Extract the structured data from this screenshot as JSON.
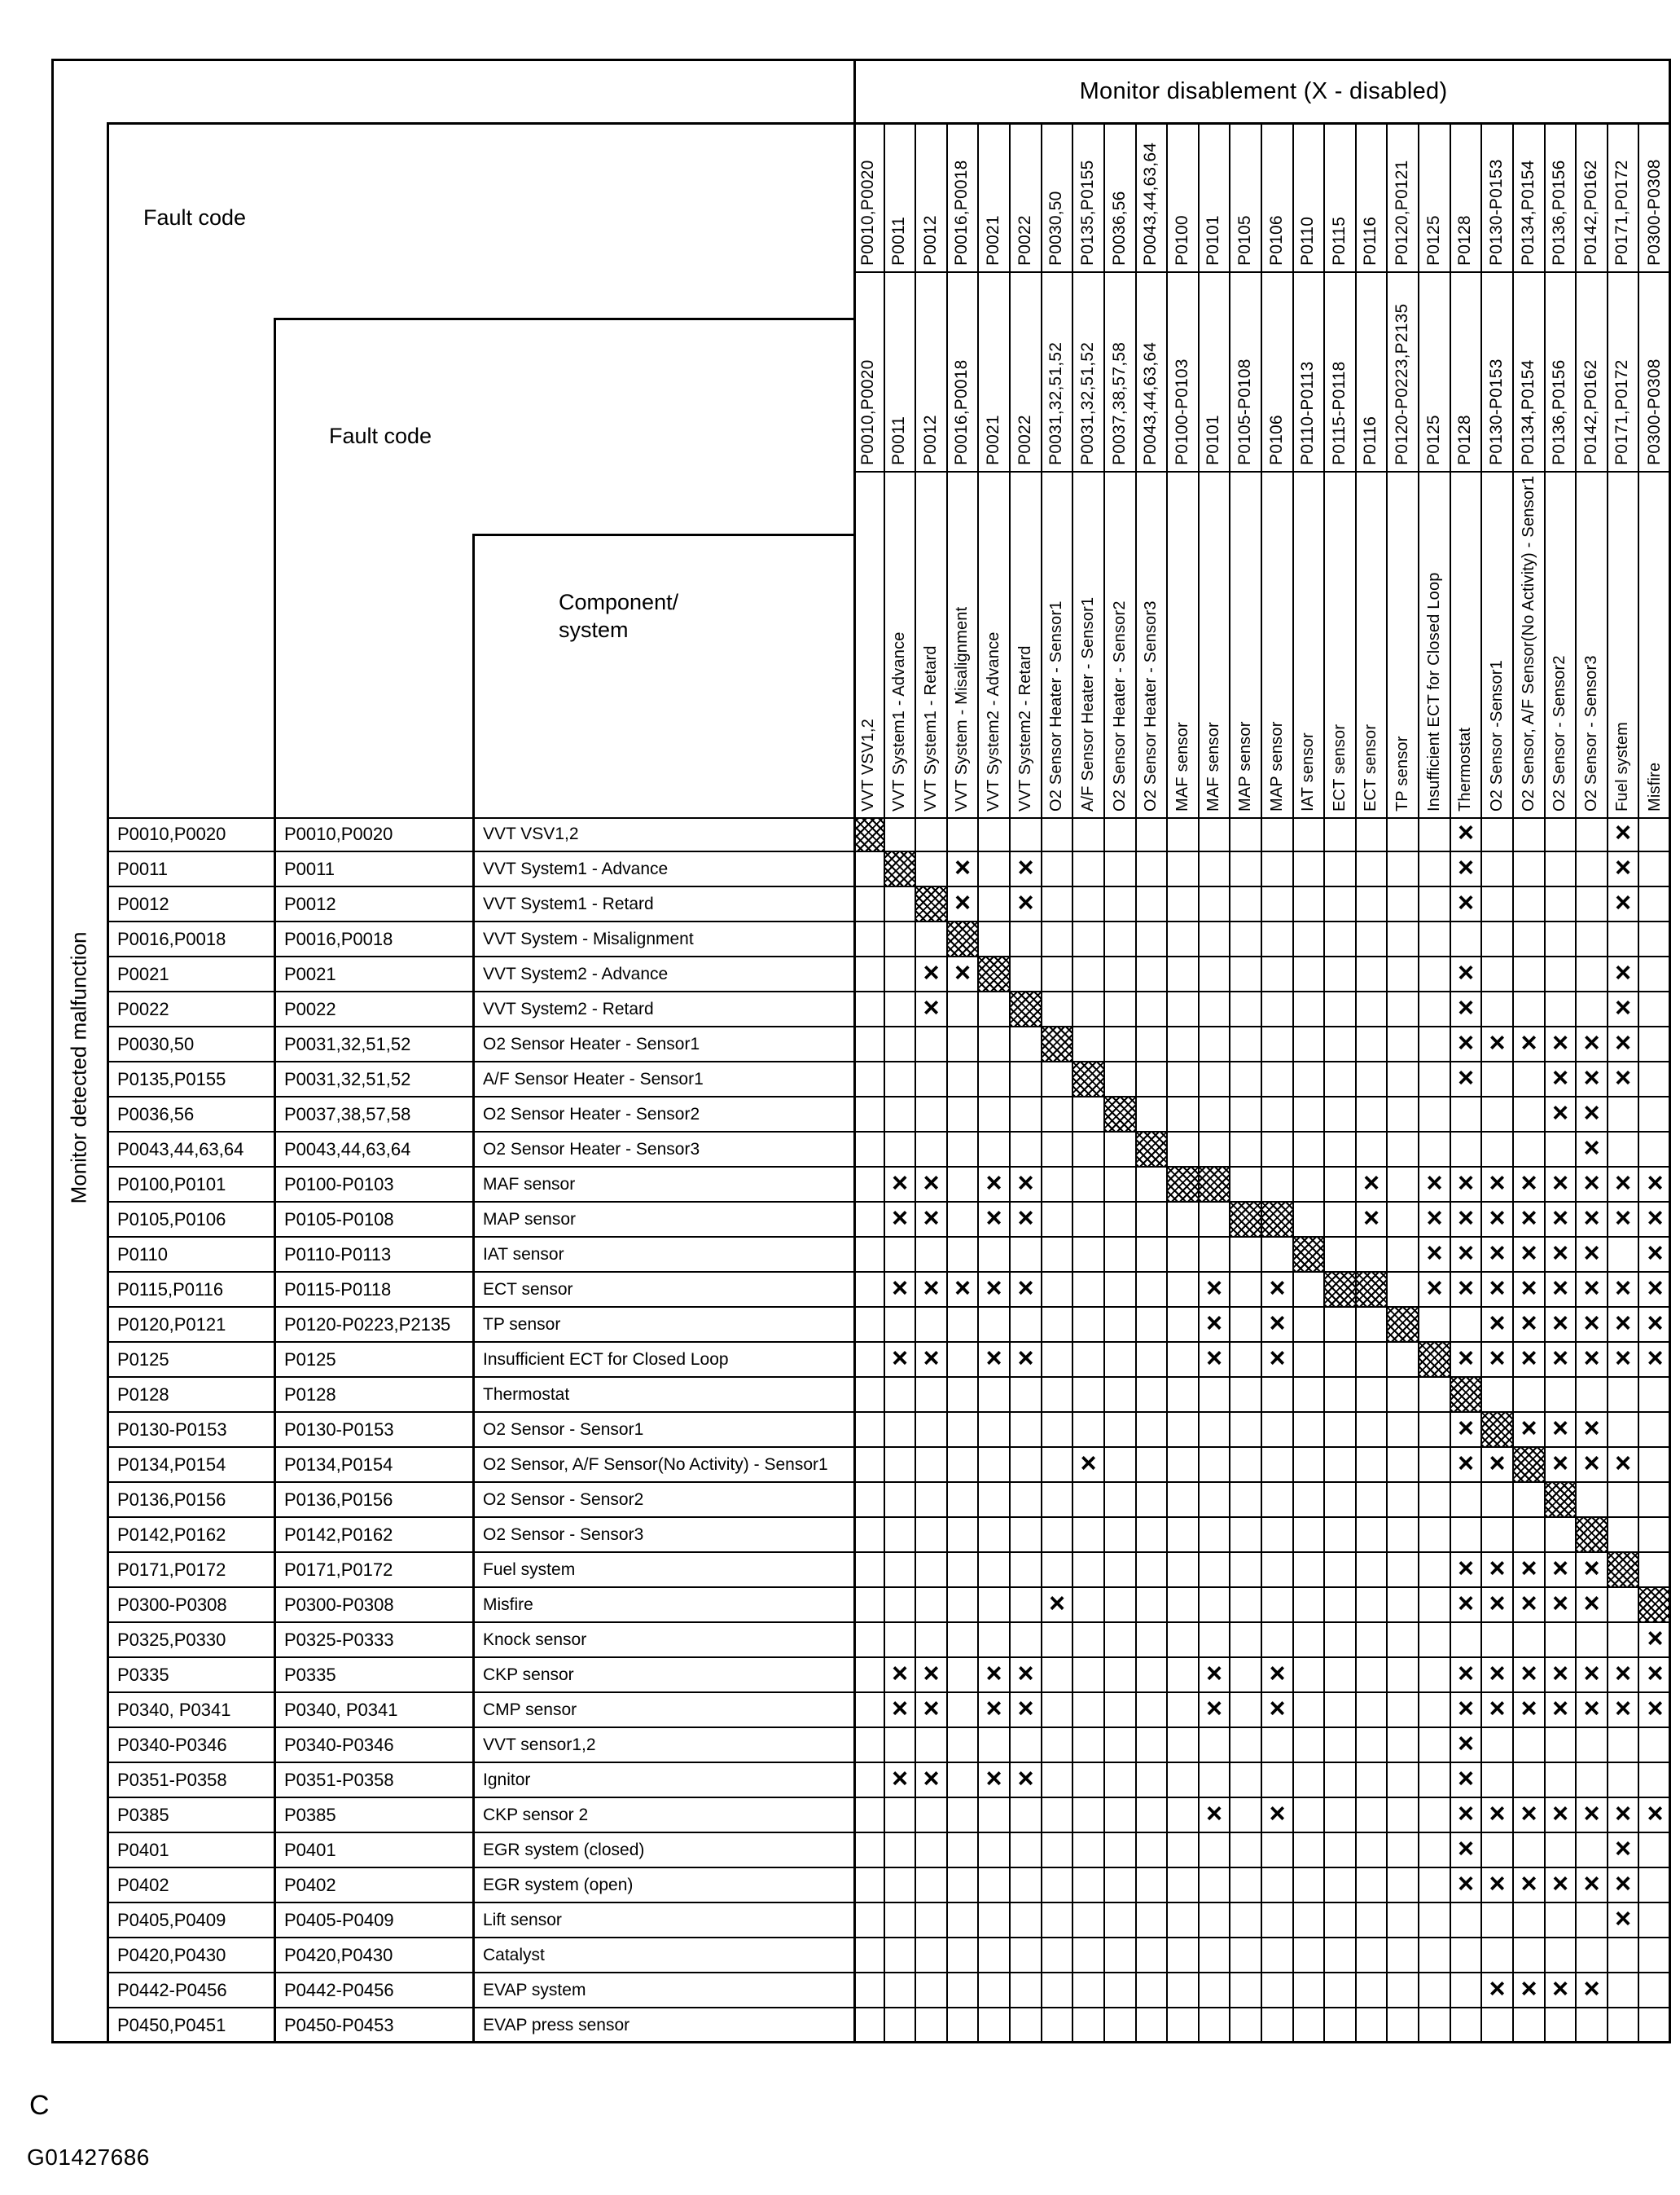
{
  "page": {
    "figure_label": "C",
    "figure_id": "G01427686"
  },
  "table": {
    "title": "Monitor disablement (X - disabled)",
    "row_axis_label": "Monitor detected malfunction",
    "fault_code_label_outer": "Fault code",
    "fault_code_label_inner": "Fault code",
    "component_label_line1": "Component/",
    "component_label_line2": "system",
    "x_glyph": "×",
    "columns": [
      {
        "code": "P0010,P0020",
        "code_range": "P0010,P0020",
        "component": "VVT VSV1,2"
      },
      {
        "code": "P0011",
        "code_range": "P0011",
        "component": "VVT System1 - Advance"
      },
      {
        "code": "P0012",
        "code_range": "P0012",
        "component": "VVT System1 - Retard"
      },
      {
        "code": "P0016,P0018",
        "code_range": "P0016,P0018",
        "component": "VVT System - Misalignment"
      },
      {
        "code": "P0021",
        "code_range": "P0021",
        "component": "VVT System2 - Advance"
      },
      {
        "code": "P0022",
        "code_range": "P0022",
        "component": "VVT System2 - Retard"
      },
      {
        "code": "P0030,50",
        "code_range": "P0031,32,51,52",
        "component": "O2 Sensor Heater - Sensor1"
      },
      {
        "code": "P0135,P0155",
        "code_range": "P0031,32,51,52",
        "component": "A/F Sensor Heater - Sensor1"
      },
      {
        "code": "P0036,56",
        "code_range": "P0037,38,57,58",
        "component": "O2 Sensor Heater - Sensor2"
      },
      {
        "code": "P0043,44,63,64",
        "code_range": "P0043,44,63,64",
        "component": "O2 Sensor Heater - Sensor3"
      },
      {
        "code": "P0100",
        "code_range": "P0100-P0103",
        "component": "MAF sensor"
      },
      {
        "code": "P0101",
        "code_range": "P0101",
        "component": "MAF sensor"
      },
      {
        "code": "P0105",
        "code_range": "P0105-P0108",
        "component": "MAP sensor"
      },
      {
        "code": "P0106",
        "code_range": "P0106",
        "component": "MAP sensor"
      },
      {
        "code": "P0110",
        "code_range": "P0110-P0113",
        "component": "IAT sensor"
      },
      {
        "code": "P0115",
        "code_range": "P0115-P0118",
        "component": "ECT sensor"
      },
      {
        "code": "P0116",
        "code_range": "P0116",
        "component": "ECT sensor"
      },
      {
        "code": "P0120,P0121",
        "code_range": "P0120-P0223,P2135",
        "component": "TP sensor"
      },
      {
        "code": "P0125",
        "code_range": "P0125",
        "component": "Insufficient ECT for Closed Loop"
      },
      {
        "code": "P0128",
        "code_range": "P0128",
        "component": "Thermostat"
      },
      {
        "code": "P0130-P0153",
        "code_range": "P0130-P0153",
        "component": "O2 Sensor -Sensor1"
      },
      {
        "code": "P0134,P0154",
        "code_range": "P0134,P0154",
        "component": "O2 Sensor, A/F Sensor(No Activity) - Sensor1"
      },
      {
        "code": "P0136,P0156",
        "code_range": "P0136,P0156",
        "component": "O2 Sensor - Sensor2"
      },
      {
        "code": "P0142,P0162",
        "code_range": "P0142,P0162",
        "component": "O2 Sensor - Sensor3"
      },
      {
        "code": "P0171,P0172",
        "code_range": "P0171,P0172",
        "component": "Fuel system"
      },
      {
        "code": "P0300-P0308",
        "code_range": "P0300-P0308",
        "component": "Misfire"
      }
    ],
    "rows": [
      {
        "fault_code": "P0010,P0020",
        "fault_code_range": "P0010,P0020",
        "component": "VVT VSV1,2",
        "x_cols": [
          20,
          25
        ],
        "diag_cols": [
          1
        ]
      },
      {
        "fault_code": "P0011",
        "fault_code_range": "P0011",
        "component": "VVT System1 - Advance",
        "x_cols": [
          4,
          6,
          20,
          25
        ],
        "diag_cols": [
          2
        ]
      },
      {
        "fault_code": "P0012",
        "fault_code_range": "P0012",
        "component": "VVT System1 - Retard",
        "x_cols": [
          4,
          6,
          20,
          25
        ],
        "diag_cols": [
          3
        ]
      },
      {
        "fault_code": "P0016,P0018",
        "fault_code_range": "P0016,P0018",
        "component": "VVT System - Misalignment",
        "x_cols": [],
        "diag_cols": [
          4
        ]
      },
      {
        "fault_code": "P0021",
        "fault_code_range": "P0021",
        "component": "VVT System2 - Advance",
        "x_cols": [
          3,
          4,
          20,
          25
        ],
        "diag_cols": [
          5
        ]
      },
      {
        "fault_code": "P0022",
        "fault_code_range": "P0022",
        "component": "VVT System2 - Retard",
        "x_cols": [
          3,
          20,
          25
        ],
        "diag_cols": [
          6
        ]
      },
      {
        "fault_code": "P0030,50",
        "fault_code_range": "P0031,32,51,52",
        "component": "O2 Sensor Heater - Sensor1",
        "x_cols": [
          20,
          21,
          22,
          23,
          24,
          25
        ],
        "diag_cols": [
          7
        ]
      },
      {
        "fault_code": "P0135,P0155",
        "fault_code_range": "P0031,32,51,52",
        "component": "A/F Sensor Heater  - Sensor1",
        "x_cols": [
          20,
          23,
          24,
          25
        ],
        "diag_cols": [
          8
        ]
      },
      {
        "fault_code": "P0036,56",
        "fault_code_range": "P0037,38,57,58",
        "component": "O2 Sensor Heater - Sensor2",
        "x_cols": [
          23,
          24
        ],
        "diag_cols": [
          9
        ]
      },
      {
        "fault_code": "P0043,44,63,64",
        "fault_code_range": "P0043,44,63,64",
        "component": "O2 Sensor Heater - Sensor3",
        "x_cols": [
          24
        ],
        "diag_cols": [
          10
        ]
      },
      {
        "fault_code": "P0100,P0101",
        "fault_code_range": "P0100-P0103",
        "component": "MAF sensor",
        "x_cols": [
          2,
          3,
          5,
          6,
          17,
          19,
          20,
          21,
          22,
          23,
          24,
          25,
          26
        ],
        "diag_cols": [
          11,
          12
        ]
      },
      {
        "fault_code": "P0105,P0106",
        "fault_code_range": "P0105-P0108",
        "component": "MAP sensor",
        "x_cols": [
          2,
          3,
          5,
          6,
          17,
          19,
          20,
          21,
          22,
          23,
          24,
          25,
          26
        ],
        "diag_cols": [
          13,
          14
        ]
      },
      {
        "fault_code": "P0110",
        "fault_code_range": "P0110-P0113",
        "component": "IAT sensor",
        "x_cols": [
          19,
          20,
          21,
          22,
          23,
          24,
          26
        ],
        "diag_cols": [
          15
        ]
      },
      {
        "fault_code": "P0115,P0116",
        "fault_code_range": "P0115-P0118",
        "component": "ECT sensor",
        "x_cols": [
          2,
          3,
          4,
          5,
          6,
          12,
          14,
          19,
          20,
          21,
          22,
          23,
          24,
          25,
          26
        ],
        "diag_cols": [
          16,
          17
        ]
      },
      {
        "fault_code": "P0120,P0121",
        "fault_code_range": "P0120-P0223,P2135",
        "component": "TP sensor",
        "x_cols": [
          12,
          14,
          21,
          22,
          23,
          24,
          25,
          26
        ],
        "diag_cols": [
          18
        ]
      },
      {
        "fault_code": "P0125",
        "fault_code_range": "P0125",
        "component": "Insufficient ECT for Closed Loop",
        "x_cols": [
          2,
          3,
          5,
          6,
          12,
          14,
          20,
          21,
          22,
          23,
          24,
          25,
          26
        ],
        "diag_cols": [
          19
        ]
      },
      {
        "fault_code": "P0128",
        "fault_code_range": "P0128",
        "component": "Thermostat",
        "x_cols": [],
        "diag_cols": [
          20
        ]
      },
      {
        "fault_code": "P0130-P0153",
        "fault_code_range": "P0130-P0153",
        "component": "O2 Sensor - Sensor1",
        "x_cols": [
          20,
          22,
          23,
          24
        ],
        "diag_cols": [
          21
        ]
      },
      {
        "fault_code": "P0134,P0154",
        "fault_code_range": "P0134,P0154",
        "component": "O2 Sensor, A/F Sensor(No Activity) - Sensor1",
        "x_cols": [
          8,
          20,
          21,
          23,
          24,
          25
        ],
        "diag_cols": [
          22
        ]
      },
      {
        "fault_code": "P0136,P0156",
        "fault_code_range": "P0136,P0156",
        "component": "O2 Sensor - Sensor2",
        "x_cols": [],
        "diag_cols": [
          23
        ]
      },
      {
        "fault_code": "P0142,P0162",
        "fault_code_range": "P0142,P0162",
        "component": "O2 Sensor - Sensor3",
        "x_cols": [],
        "diag_cols": [
          24
        ]
      },
      {
        "fault_code": "P0171,P0172",
        "fault_code_range": "P0171,P0172",
        "component": "Fuel system",
        "x_cols": [
          20,
          21,
          22,
          23,
          24
        ],
        "diag_cols": [
          25
        ]
      },
      {
        "fault_code": "P0300-P0308",
        "fault_code_range": "P0300-P0308",
        "component": "Misfire",
        "x_cols": [
          7,
          20,
          21,
          22,
          23,
          24
        ],
        "diag_cols": [
          26
        ]
      },
      {
        "fault_code": "P0325,P0330",
        "fault_code_range": "P0325-P0333",
        "component": "Knock sensor",
        "x_cols": [
          26
        ],
        "diag_cols": []
      },
      {
        "fault_code": "P0335",
        "fault_code_range": "P0335",
        "component": "CKP sensor",
        "x_cols": [
          2,
          3,
          5,
          6,
          12,
          14,
          20,
          21,
          22,
          23,
          24,
          25,
          26
        ],
        "diag_cols": []
      },
      {
        "fault_code": "P0340, P0341",
        "fault_code_range": "P0340, P0341",
        "component": "CMP sensor",
        "x_cols": [
          2,
          3,
          5,
          6,
          12,
          14,
          20,
          21,
          22,
          23,
          24,
          25,
          26
        ],
        "diag_cols": []
      },
      {
        "fault_code": "P0340-P0346",
        "fault_code_range": "P0340-P0346",
        "component": "VVT sensor1,2",
        "x_cols": [
          20
        ],
        "diag_cols": []
      },
      {
        "fault_code": "P0351-P0358",
        "fault_code_range": "P0351-P0358",
        "component": "Ignitor",
        "x_cols": [
          2,
          3,
          5,
          6,
          20
        ],
        "diag_cols": []
      },
      {
        "fault_code": "P0385",
        "fault_code_range": "P0385",
        "component": "CKP sensor 2",
        "x_cols": [
          12,
          14,
          20,
          21,
          22,
          23,
          24,
          25,
          26
        ],
        "diag_cols": []
      },
      {
        "fault_code": "P0401",
        "fault_code_range": "P0401",
        "component": "EGR system (closed)",
        "x_cols": [
          20,
          25
        ],
        "diag_cols": []
      },
      {
        "fault_code": "P0402",
        "fault_code_range": "P0402",
        "component": "EGR system (open)",
        "x_cols": [
          20,
          21,
          22,
          23,
          24,
          25
        ],
        "diag_cols": []
      },
      {
        "fault_code": "P0405,P0409",
        "fault_code_range": "P0405-P0409",
        "component": "Lift sensor",
        "x_cols": [
          25
        ],
        "diag_cols": []
      },
      {
        "fault_code": "P0420,P0430",
        "fault_code_range": "P0420,P0430",
        "component": "Catalyst",
        "x_cols": [],
        "diag_cols": []
      },
      {
        "fault_code": "P0442-P0456",
        "fault_code_range": "P0442-P0456",
        "component": "EVAP system",
        "x_cols": [
          21,
          22,
          23,
          24
        ],
        "diag_cols": []
      },
      {
        "fault_code": "P0450,P0451",
        "fault_code_range": "P0450-P0453",
        "component": "EVAP press sensor",
        "x_cols": [],
        "diag_cols": []
      }
    ]
  }
}
